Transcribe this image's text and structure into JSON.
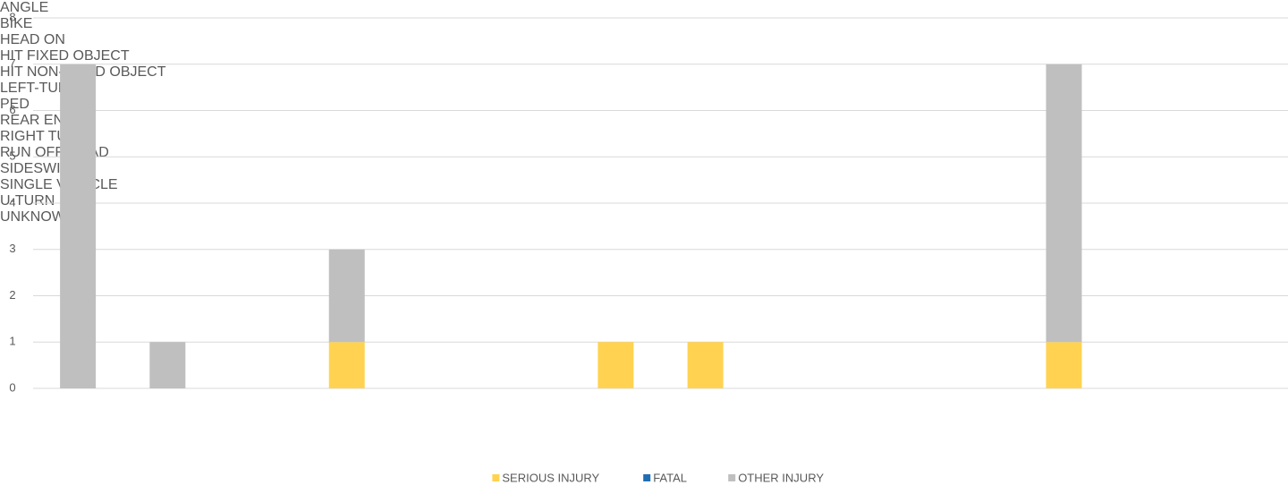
{
  "chart_data": {
    "type": "bar",
    "stacked": true,
    "categories": [
      "ANGLE",
      "BIKE",
      "HEAD ON",
      "HIT FIXED OBJECT",
      "HIT NON-FIXED OBJECT",
      "LEFT-TURN",
      "PED",
      "REAR END",
      "RIGHT TURN",
      "RUN OFF ROAD",
      "SIDESWIPE",
      "SINGLE VEHICLE",
      "U-TURN",
      "UNKNOWN"
    ],
    "series": [
      {
        "name": "SERIOUS INJURY",
        "color": "#ffd351",
        "values": [
          0,
          0,
          0,
          1,
          0,
          0,
          1,
          1,
          0,
          0,
          0,
          1,
          0,
          0
        ]
      },
      {
        "name": "FATAL",
        "color": "#1f6eb4",
        "values": [
          0,
          0,
          0,
          0,
          0,
          0,
          0,
          0,
          0,
          0,
          0,
          0,
          0,
          0
        ]
      },
      {
        "name": "OTHER INJURY",
        "color": "#bfbfbf",
        "values": [
          7,
          1,
          0,
          2,
          0,
          0,
          0,
          0,
          0,
          0,
          0,
          6,
          0,
          0
        ]
      }
    ],
    "ylim": [
      0,
      8
    ],
    "yticks": [
      0,
      1,
      2,
      3,
      4,
      5,
      6,
      7,
      8
    ],
    "grid": true,
    "legend": "bottom"
  }
}
